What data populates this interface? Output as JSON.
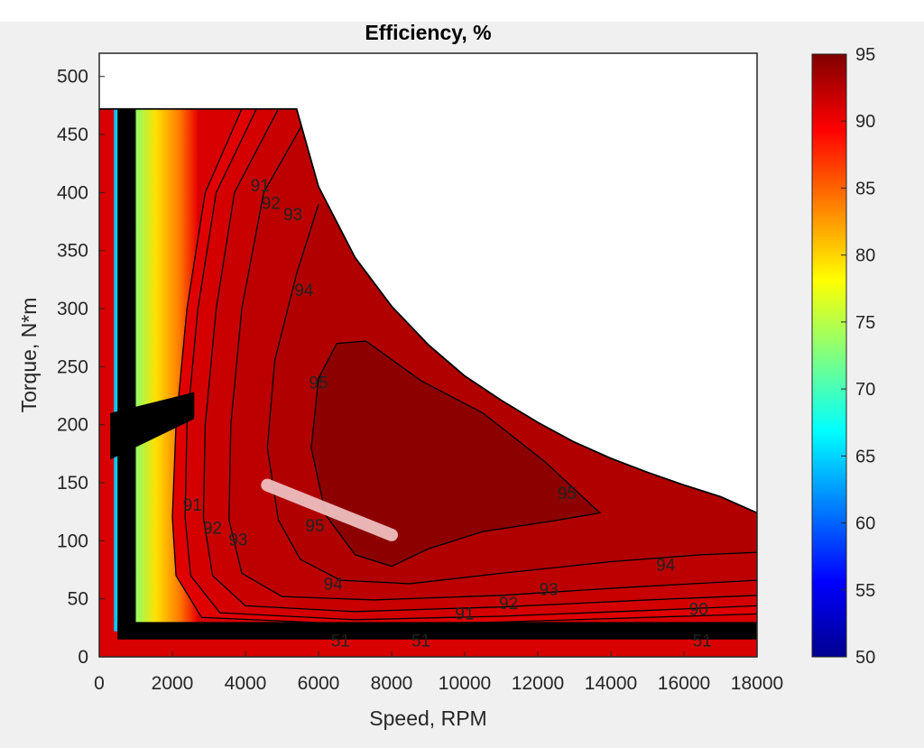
{
  "chart_data": {
    "type": "heatmap",
    "title": "Efficiency, %",
    "xlabel": "Speed, RPM",
    "ylabel": "Torque, N*m",
    "xlim": [
      0,
      18000
    ],
    "ylim": [
      0,
      520
    ],
    "x_ticks": [
      0,
      2000,
      4000,
      6000,
      8000,
      10000,
      12000,
      14000,
      16000,
      18000
    ],
    "y_ticks": [
      0,
      50,
      100,
      150,
      200,
      250,
      300,
      350,
      400,
      450,
      500
    ],
    "colorbar": {
      "min": 50,
      "max": 95,
      "ticks": [
        50,
        55,
        60,
        65,
        70,
        75,
        80,
        85,
        90,
        95
      ],
      "colormap": "jet"
    },
    "grid": false,
    "max_torque_envelope": [
      {
        "x": 0,
        "y": 472
      },
      {
        "x": 5400,
        "y": 472
      },
      {
        "x": 6000,
        "y": 405
      },
      {
        "x": 7000,
        "y": 344
      },
      {
        "x": 8000,
        "y": 302
      },
      {
        "x": 9000,
        "y": 269
      },
      {
        "x": 10000,
        "y": 242
      },
      {
        "x": 11000,
        "y": 221
      },
      {
        "x": 12000,
        "y": 202
      },
      {
        "x": 13000,
        "y": 185
      },
      {
        "x": 14000,
        "y": 171
      },
      {
        "x": 15000,
        "y": 159
      },
      {
        "x": 16000,
        "y": 148
      },
      {
        "x": 17000,
        "y": 138
      },
      {
        "x": 18000,
        "y": 124
      }
    ],
    "contours": [
      {
        "level": 95,
        "points": [
          {
            "x": 6500,
            "y": 270
          },
          {
            "x": 7300,
            "y": 272
          },
          {
            "x": 8800,
            "y": 238
          },
          {
            "x": 10500,
            "y": 210
          },
          {
            "x": 12200,
            "y": 168
          },
          {
            "x": 13700,
            "y": 124
          },
          {
            "x": 12400,
            "y": 117
          },
          {
            "x": 10500,
            "y": 108
          },
          {
            "x": 9000,
            "y": 93
          },
          {
            "x": 8000,
            "y": 78
          },
          {
            "x": 7000,
            "y": 88
          },
          {
            "x": 6200,
            "y": 122
          },
          {
            "x": 5800,
            "y": 180
          },
          {
            "x": 6000,
            "y": 240
          },
          {
            "x": 6500,
            "y": 270
          }
        ]
      },
      {
        "level": 94,
        "points": [
          {
            "x": 6000,
            "y": 390
          },
          {
            "x": 5400,
            "y": 330
          },
          {
            "x": 4800,
            "y": 255
          },
          {
            "x": 4600,
            "y": 180
          },
          {
            "x": 4900,
            "y": 118
          },
          {
            "x": 5500,
            "y": 84
          },
          {
            "x": 6600,
            "y": 66
          },
          {
            "x": 8500,
            "y": 63
          },
          {
            "x": 11000,
            "y": 72
          },
          {
            "x": 14000,
            "y": 82
          },
          {
            "x": 16500,
            "y": 88
          },
          {
            "x": 18000,
            "y": 90
          }
        ]
      },
      {
        "level": 93,
        "points": [
          {
            "x": 5800,
            "y": 472
          },
          {
            "x": 4500,
            "y": 400
          },
          {
            "x": 3900,
            "y": 300
          },
          {
            "x": 3600,
            "y": 200
          },
          {
            "x": 3550,
            "y": 118
          },
          {
            "x": 3900,
            "y": 72
          },
          {
            "x": 5000,
            "y": 52
          },
          {
            "x": 7500,
            "y": 49
          },
          {
            "x": 11000,
            "y": 53
          },
          {
            "x": 14500,
            "y": 60
          },
          {
            "x": 18000,
            "y": 66
          }
        ]
      },
      {
        "level": 92,
        "points": [
          {
            "x": 4900,
            "y": 472
          },
          {
            "x": 3700,
            "y": 400
          },
          {
            "x": 3200,
            "y": 300
          },
          {
            "x": 2900,
            "y": 200
          },
          {
            "x": 2850,
            "y": 120
          },
          {
            "x": 3100,
            "y": 70
          },
          {
            "x": 4000,
            "y": 44
          },
          {
            "x": 7000,
            "y": 39
          },
          {
            "x": 11000,
            "y": 43
          },
          {
            "x": 15000,
            "y": 49
          },
          {
            "x": 18000,
            "y": 53
          }
        ]
      },
      {
        "level": 91,
        "points": [
          {
            "x": 4300,
            "y": 472
          },
          {
            "x": 3200,
            "y": 400
          },
          {
            "x": 2700,
            "y": 300
          },
          {
            "x": 2400,
            "y": 200
          },
          {
            "x": 2350,
            "y": 120
          },
          {
            "x": 2500,
            "y": 70
          },
          {
            "x": 3300,
            "y": 38
          },
          {
            "x": 7000,
            "y": 32
          },
          {
            "x": 11000,
            "y": 35
          },
          {
            "x": 15000,
            "y": 40
          },
          {
            "x": 18000,
            "y": 44
          }
        ]
      },
      {
        "level": 90,
        "points": [
          {
            "x": 3900,
            "y": 472
          },
          {
            "x": 2900,
            "y": 400
          },
          {
            "x": 2400,
            "y": 300
          },
          {
            "x": 2100,
            "y": 200
          },
          {
            "x": 2000,
            "y": 120
          },
          {
            "x": 2100,
            "y": 70
          },
          {
            "x": 2800,
            "y": 34
          },
          {
            "x": 7000,
            "y": 28
          },
          {
            "x": 11000,
            "y": 30
          },
          {
            "x": 15000,
            "y": 34
          },
          {
            "x": 18000,
            "y": 37
          }
        ]
      }
    ],
    "contour_labels": [
      {
        "text": "91",
        "x": 4400,
        "y": 405
      },
      {
        "text": "92",
        "x": 4700,
        "y": 390
      },
      {
        "text": "93",
        "x": 5300,
        "y": 380
      },
      {
        "text": "94",
        "x": 5600,
        "y": 315
      },
      {
        "text": "95",
        "x": 6000,
        "y": 235
      },
      {
        "text": "95",
        "x": 12800,
        "y": 140
      },
      {
        "text": "95",
        "x": 5900,
        "y": 112
      },
      {
        "text": "94",
        "x": 6400,
        "y": 62
      },
      {
        "text": "94",
        "x": 15500,
        "y": 78
      },
      {
        "text": "93",
        "x": 12300,
        "y": 57
      },
      {
        "text": "92",
        "x": 11200,
        "y": 45
      },
      {
        "text": "91",
        "x": 10000,
        "y": 36
      },
      {
        "text": "91",
        "x": 2550,
        "y": 130
      },
      {
        "text": "92",
        "x": 3100,
        "y": 110
      },
      {
        "text": "93",
        "x": 3800,
        "y": 100
      },
      {
        "text": "90",
        "x": 16400,
        "y": 40
      },
      {
        "text": "51",
        "x": 6600,
        "y": 13
      },
      {
        "text": "51",
        "x": 8800,
        "y": 13
      },
      {
        "text": "51",
        "x": 16500,
        "y": 13
      }
    ],
    "annotations": [
      {
        "type": "marker_line",
        "from": {
          "x": 4600,
          "y": 148
        },
        "to": {
          "x": 8000,
          "y": 105
        }
      }
    ]
  }
}
